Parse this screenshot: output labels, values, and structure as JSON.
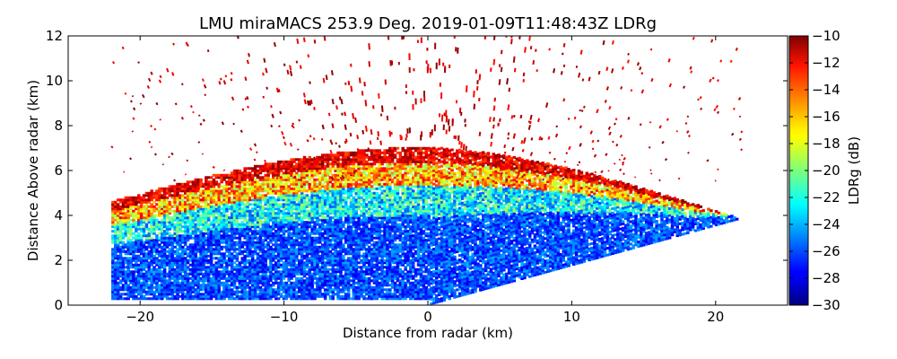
{
  "chart_data": {
    "type": "heatmap",
    "title": "LMU miraMACS 253.9 Deg. 2019-01-09T11:48:43Z  LDRg",
    "xlabel": "Distance from radar (km)",
    "ylabel": "Distance Above radar  (km)",
    "xlim": [
      -25,
      25
    ],
    "ylim": [
      0,
      12
    ],
    "x_ticks": [
      -20,
      -10,
      0,
      10,
      20
    ],
    "x_tick_labels": [
      "−20",
      "−10",
      "0",
      "10",
      "20"
    ],
    "y_ticks": [
      0,
      2,
      4,
      6,
      8,
      10,
      12
    ],
    "y_tick_labels": [
      "0",
      "2",
      "4",
      "6",
      "8",
      "10",
      "12"
    ],
    "colorbar": {
      "label": "LDRg (dB)",
      "range": [
        -30,
        -10
      ],
      "colormap": "jet",
      "ticks": [
        -30,
        -28,
        -26,
        -24,
        -22,
        -20,
        -18,
        -16,
        -14,
        -12,
        -10
      ],
      "tick_labels": [
        "−30",
        "−28",
        "−26",
        "−24",
        "−22",
        "−20",
        "−18",
        "−16",
        "−14",
        "−12",
        "−10"
      ]
    },
    "scan": {
      "azimuth_deg": 253.9,
      "left_edge_x_km": -22,
      "right_edge_x_km": 22,
      "right_edge_top_km": 3.9,
      "low_ldr_core_top_km": 4.5,
      "melting_layer_km": [
        4,
        7
      ],
      "sparse_echo_top_km": 12
    },
    "grid": false
  }
}
